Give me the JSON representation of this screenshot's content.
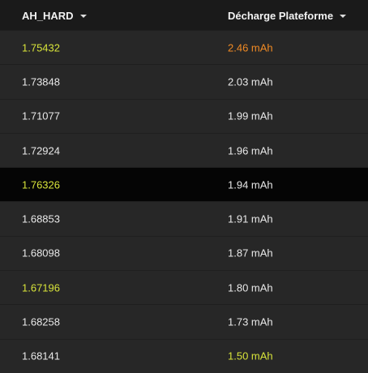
{
  "colors": {
    "default_text": "#e8e8e8",
    "highlight_yellow": "#d7e33a",
    "highlight_orange": "#f08a24"
  },
  "header": {
    "col1_label": "AH_HARD",
    "col2_label": "Décharge Plateforme",
    "col1_sort_icon": "caret-down-icon",
    "col2_sort_icon": "caret-down-icon"
  },
  "rows": [
    {
      "ah_hard": "1.75432",
      "decharge": "2.46 mAh",
      "ah_color": "#d7e33a",
      "dec_color": "#f08a24",
      "dark": false
    },
    {
      "ah_hard": "1.73848",
      "decharge": "2.03 mAh",
      "ah_color": "#e8e8e8",
      "dec_color": "#e8e8e8",
      "dark": false
    },
    {
      "ah_hard": "1.71077",
      "decharge": "1.99 mAh",
      "ah_color": "#e8e8e8",
      "dec_color": "#e8e8e8",
      "dark": false
    },
    {
      "ah_hard": "1.72924",
      "decharge": "1.96 mAh",
      "ah_color": "#e8e8e8",
      "dec_color": "#e8e8e8",
      "dark": false
    },
    {
      "ah_hard": "1.76326",
      "decharge": "1.94 mAh",
      "ah_color": "#d7e33a",
      "dec_color": "#e8e8e8",
      "dark": true
    },
    {
      "ah_hard": "1.68853",
      "decharge": "1.91 mAh",
      "ah_color": "#e8e8e8",
      "dec_color": "#e8e8e8",
      "dark": false
    },
    {
      "ah_hard": "1.68098",
      "decharge": "1.87 mAh",
      "ah_color": "#e8e8e8",
      "dec_color": "#e8e8e8",
      "dark": false
    },
    {
      "ah_hard": "1.67196",
      "decharge": "1.80 mAh",
      "ah_color": "#d7e33a",
      "dec_color": "#e8e8e8",
      "dark": false
    },
    {
      "ah_hard": "1.68258",
      "decharge": "1.73 mAh",
      "ah_color": "#e8e8e8",
      "dec_color": "#e8e8e8",
      "dark": false
    },
    {
      "ah_hard": "1.68141",
      "decharge": "1.50 mAh",
      "ah_color": "#e8e8e8",
      "dec_color": "#d7e33a",
      "dark": false
    }
  ]
}
